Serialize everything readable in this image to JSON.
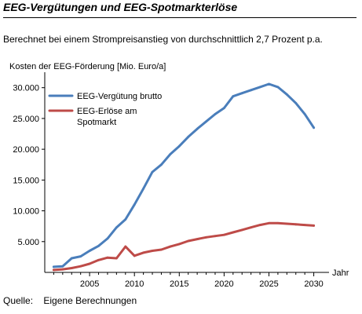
{
  "header": {
    "title": "EEG-Vergütungen und EEG-Spotmarkterlöse",
    "subtitle": "Berechnet bei einem Strompreisanstieg von durchschnittlich 2,7 Prozent p.a."
  },
  "footer": {
    "source_label": "Quelle:",
    "source_value": "Eigene Berechnungen"
  },
  "chart_data": {
    "type": "line",
    "ylabel": "Kosten der EEG-Förderung [Mio. Euro/a]",
    "xlabel": "Jahr",
    "xlim": [
      2000,
      2031
    ],
    "ylim": [
      0,
      32000
    ],
    "x_ticks": [
      2005,
      2010,
      2015,
      2020,
      2025,
      2030
    ],
    "y_ticks": [
      5000,
      10000,
      15000,
      20000,
      25000,
      30000
    ],
    "y_tick_labels": [
      "5.000",
      "10.000",
      "15.000",
      "20.000",
      "25.000",
      "30.000"
    ],
    "grid": false,
    "legend_position": "top-left",
    "x": [
      2001,
      2002,
      2003,
      2004,
      2005,
      2006,
      2007,
      2008,
      2009,
      2010,
      2011,
      2012,
      2013,
      2014,
      2015,
      2016,
      2017,
      2018,
      2019,
      2020,
      2021,
      2022,
      2023,
      2024,
      2025,
      2026,
      2027,
      2028,
      2029,
      2030
    ],
    "series": [
      {
        "name": "EEG-Vergütung brutto",
        "color": "#4a7ebb",
        "values": [
          900,
          1000,
          2300,
          2600,
          3500,
          4300,
          5500,
          7300,
          8600,
          11000,
          13600,
          16300,
          17500,
          19200,
          20500,
          22000,
          23300,
          24500,
          25700,
          26700,
          28600,
          29100,
          29600,
          30100,
          30600,
          30100,
          28900,
          27500,
          25700,
          23500
        ]
      },
      {
        "name": "EEG-Erlöse am Spotmarkt",
        "color": "#be4b48",
        "values": [
          400,
          500,
          700,
          1000,
          1400,
          2000,
          2400,
          2300,
          4200,
          2700,
          3200,
          3500,
          3700,
          4200,
          4600,
          5100,
          5400,
          5700,
          5900,
          6100,
          6500,
          6900,
          7300,
          7700,
          8000,
          8000,
          7900,
          7800,
          7700,
          7600
        ]
      }
    ]
  }
}
